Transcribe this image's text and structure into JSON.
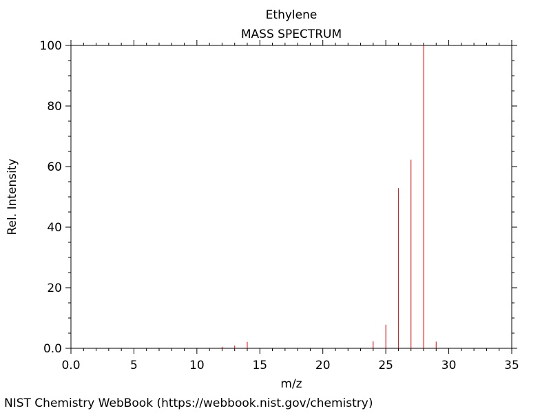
{
  "chart_data": {
    "type": "bar",
    "title": "Ethylene",
    "subtitle": "MASS SPECTRUM",
    "xlabel": "m/z",
    "ylabel": "Rel. Intensity",
    "xlim": [
      0,
      35
    ],
    "ylim": [
      0,
      100
    ],
    "x_ticks": [
      "0.0",
      "5",
      "10",
      "15",
      "20",
      "25",
      "30",
      "35"
    ],
    "y_ticks": [
      "0.0",
      "20",
      "40",
      "60",
      "80",
      "100"
    ],
    "grid": false,
    "bar_color": "#ff0000",
    "peaks": [
      {
        "mz": 12,
        "intensity": 0.5
      },
      {
        "mz": 13,
        "intensity": 0.9
      },
      {
        "mz": 14,
        "intensity": 2.1
      },
      {
        "mz": 24,
        "intensity": 2.3
      },
      {
        "mz": 25,
        "intensity": 7.8
      },
      {
        "mz": 26,
        "intensity": 52.9
      },
      {
        "mz": 27,
        "intensity": 62.3
      },
      {
        "mz": 28,
        "intensity": 100
      },
      {
        "mz": 29,
        "intensity": 2.2
      }
    ]
  },
  "footer": {
    "credit": "NIST Chemistry WebBook (https://webbook.nist.gov/chemistry)"
  }
}
